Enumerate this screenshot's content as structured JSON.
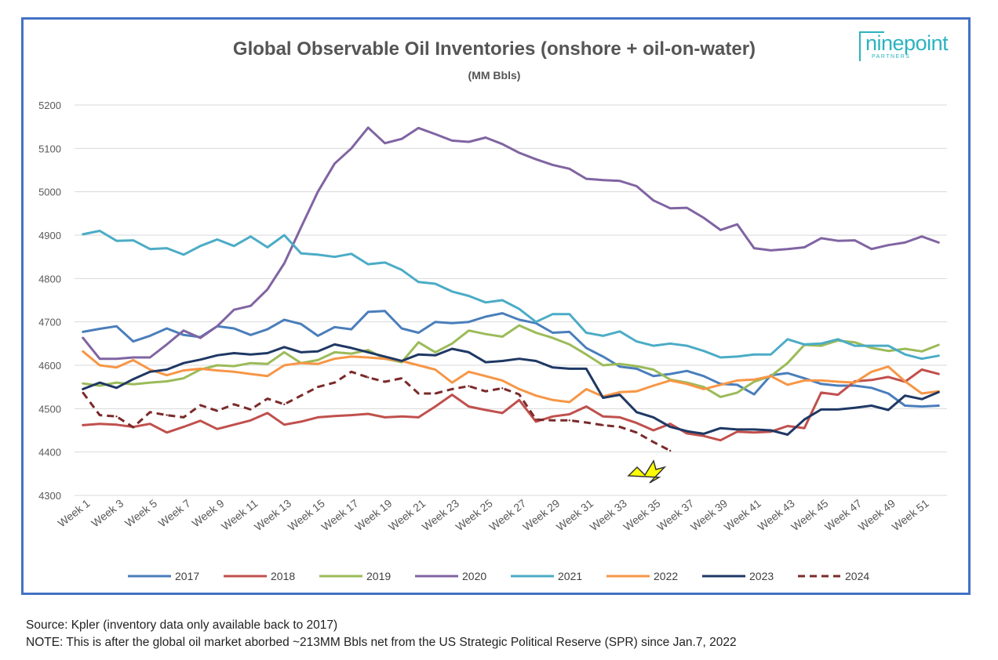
{
  "chart_data": {
    "type": "line",
    "title": "Global Observable Oil Inventories (onshore + oil-on-water)",
    "subtitle": "(MM Bbls)",
    "xlabel": "",
    "ylabel": "",
    "ylim": [
      4300,
      5200
    ],
    "yticks": [
      4300,
      4400,
      4500,
      4600,
      4700,
      4800,
      4900,
      5000,
      5100,
      5200
    ],
    "grid": true,
    "legend_position": "bottom",
    "categories": [
      "Week 1",
      "Week 2",
      "Week 3",
      "Week 4",
      "Week 5",
      "Week 6",
      "Week 7",
      "Week 8",
      "Week 9",
      "Week 10",
      "Week 11",
      "Week 12",
      "Week 13",
      "Week 14",
      "Week 15",
      "Week 16",
      "Week 17",
      "Week 18",
      "Week 19",
      "Week 20",
      "Week 21",
      "Week 22",
      "Week 23",
      "Week 24",
      "Week 25",
      "Week 26",
      "Week 27",
      "Week 28",
      "Week 29",
      "Week 30",
      "Week 31",
      "Week 32",
      "Week 33",
      "Week 34",
      "Week 35",
      "Week 36",
      "Week 37",
      "Week 38",
      "Week 39",
      "Week 40",
      "Week 41",
      "Week 42",
      "Week 43",
      "Week 44",
      "Week 45",
      "Week 46",
      "Week 47",
      "Week 48",
      "Week 49",
      "Week 50",
      "Week 51",
      "Week 52"
    ],
    "xtick_labels": [
      "Week 1",
      "Week 3",
      "Week 5",
      "Week 7",
      "Week 9",
      "Week 11",
      "Week 13",
      "Week 15",
      "Week 17",
      "Week 19",
      "Week 21",
      "Week 23",
      "Week 25",
      "Week 27",
      "Week 29",
      "Week 31",
      "Week 33",
      "Week 35",
      "Week 37",
      "Week 39",
      "Week 41",
      "Week 43",
      "Week 45",
      "Week 47",
      "Week 49",
      "Week 51"
    ],
    "series": [
      {
        "name": "2017",
        "color": "#4a7ebb",
        "dashed": false,
        "values": [
          4677,
          4684,
          4690,
          4655,
          4668,
          4685,
          4670,
          4665,
          4690,
          4685,
          4670,
          4683,
          4705,
          4695,
          4668,
          4688,
          4683,
          4723,
          4725,
          4685,
          4675,
          4700,
          4697,
          4700,
          4712,
          4720,
          4705,
          4697,
          4675,
          4677,
          4640,
          4620,
          4597,
          4592,
          4575,
          4580,
          4587,
          4575,
          4557,
          4555,
          4533,
          4577,
          4582,
          4570,
          4557,
          4553,
          4553,
          4548,
          4535,
          4507,
          4505,
          4507
        ]
      },
      {
        "name": "2018",
        "color": "#c0504d",
        "dashed": false,
        "values": [
          4462,
          4465,
          4463,
          4458,
          4465,
          4445,
          4458,
          4472,
          4453,
          4463,
          4473,
          4490,
          4463,
          4470,
          4480,
          4483,
          4485,
          4488,
          4480,
          4482,
          4480,
          4505,
          4532,
          4505,
          4497,
          4490,
          4520,
          4470,
          4482,
          4487,
          4505,
          4482,
          4480,
          4467,
          4450,
          4465,
          4443,
          4437,
          4427,
          4447,
          4445,
          4447,
          4460,
          4455,
          4537,
          4532,
          4563,
          4566,
          4573,
          4562,
          4590,
          4580
        ]
      },
      {
        "name": "2019",
        "color": "#9bbb59",
        "dashed": false,
        "values": [
          4558,
          4553,
          4560,
          4556,
          4560,
          4563,
          4570,
          4590,
          4600,
          4598,
          4605,
          4603,
          4630,
          4605,
          4612,
          4630,
          4627,
          4635,
          4615,
          4607,
          4653,
          4630,
          4650,
          4680,
          4672,
          4666,
          4692,
          4675,
          4663,
          4648,
          4625,
          4600,
          4603,
          4598,
          4590,
          4567,
          4560,
          4550,
          4527,
          4537,
          4562,
          4575,
          4605,
          4647,
          4645,
          4657,
          4653,
          4640,
          4633,
          4638,
          4632,
          4647
        ]
      },
      {
        "name": "2020",
        "color": "#8064a2",
        "dashed": false,
        "values": [
          4663,
          4615,
          4615,
          4618,
          4618,
          4648,
          4680,
          4663,
          4690,
          4728,
          4737,
          4775,
          4835,
          4918,
          5000,
          5065,
          5100,
          5148,
          5112,
          5122,
          5147,
          5133,
          5118,
          5115,
          5125,
          5110,
          5090,
          5075,
          5062,
          5053,
          5030,
          5027,
          5025,
          5013,
          4980,
          4962,
          4963,
          4940,
          4912,
          4925,
          4870,
          4865,
          4868,
          4872,
          4893,
          4887,
          4888,
          4868,
          4877,
          4883,
          4897,
          4883
        ]
      },
      {
        "name": "2021",
        "color": "#4bacc6",
        "dashed": false,
        "values": [
          4902,
          4910,
          4887,
          4888,
          4868,
          4870,
          4855,
          4875,
          4890,
          4875,
          4897,
          4872,
          4900,
          4858,
          4855,
          4850,
          4857,
          4833,
          4837,
          4820,
          4792,
          4788,
          4770,
          4760,
          4745,
          4750,
          4730,
          4700,
          4718,
          4718,
          4675,
          4668,
          4678,
          4655,
          4645,
          4650,
          4645,
          4633,
          4618,
          4620,
          4625,
          4625,
          4660,
          4648,
          4650,
          4660,
          4645,
          4645,
          4645,
          4625,
          4615,
          4622
        ]
      },
      {
        "name": "2022",
        "color": "#f79646",
        "dashed": false,
        "values": [
          4632,
          4600,
          4595,
          4612,
          4590,
          4577,
          4588,
          4592,
          4588,
          4585,
          4580,
          4575,
          4600,
          4605,
          4603,
          4615,
          4620,
          4618,
          4615,
          4610,
          4600,
          4590,
          4560,
          4585,
          4575,
          4565,
          4545,
          4530,
          4520,
          4515,
          4545,
          4528,
          4538,
          4540,
          4553,
          4565,
          4557,
          4545,
          4555,
          4565,
          4567,
          4575,
          4555,
          4565,
          4565,
          4562,
          4560,
          4585,
          4597,
          4563,
          4535,
          4540
        ]
      },
      {
        "name": "2023",
        "color": "#1f3864",
        "dashed": false,
        "values": [
          4545,
          4560,
          4548,
          4568,
          4585,
          4590,
          4605,
          4613,
          4623,
          4628,
          4625,
          4628,
          4642,
          4630,
          4632,
          4648,
          4640,
          4630,
          4620,
          4610,
          4625,
          4623,
          4638,
          4630,
          4607,
          4610,
          4615,
          4610,
          4595,
          4592,
          4592,
          4525,
          4532,
          4492,
          4480,
          4458,
          4448,
          4442,
          4455,
          4452,
          4452,
          4450,
          4440,
          4475,
          4498,
          4498,
          4502,
          4507,
          4497,
          4530,
          4522,
          4538
        ]
      },
      {
        "name": "2024",
        "color": "#7b2a2a",
        "dashed": true,
        "values": [
          4537,
          4485,
          4482,
          4457,
          4492,
          4485,
          4480,
          4508,
          4495,
          4510,
          4498,
          4523,
          4510,
          4530,
          4550,
          4560,
          4585,
          4572,
          4562,
          4570,
          4535,
          4535,
          4545,
          4552,
          4540,
          4547,
          4533,
          4475,
          4473,
          4473,
          4468,
          4462,
          4458,
          4445,
          4423,
          4403,
          null,
          null,
          null,
          null,
          null,
          null,
          null,
          null,
          null,
          null,
          null,
          null,
          null,
          null,
          null,
          null
        ]
      }
    ]
  },
  "header": {
    "title": "Global Observable Oil Inventories (onshore + oil-on-water)",
    "subtitle": "(MM Bbls)"
  },
  "logo": {
    "text": "ninepoint",
    "sub": "PARTNERS"
  },
  "annotation": {
    "arrow_color": "#ffff00",
    "arrow_icon": "arrow-pointing-down-right"
  },
  "footer": {
    "source": "Source: Kpler (inventory data only available back to 2017)",
    "note": "NOTE: This is after the global oil market aborbed ~213MM Bbls net from the US Strategic Political Reserve (SPR) since Jan.7, 2022"
  }
}
